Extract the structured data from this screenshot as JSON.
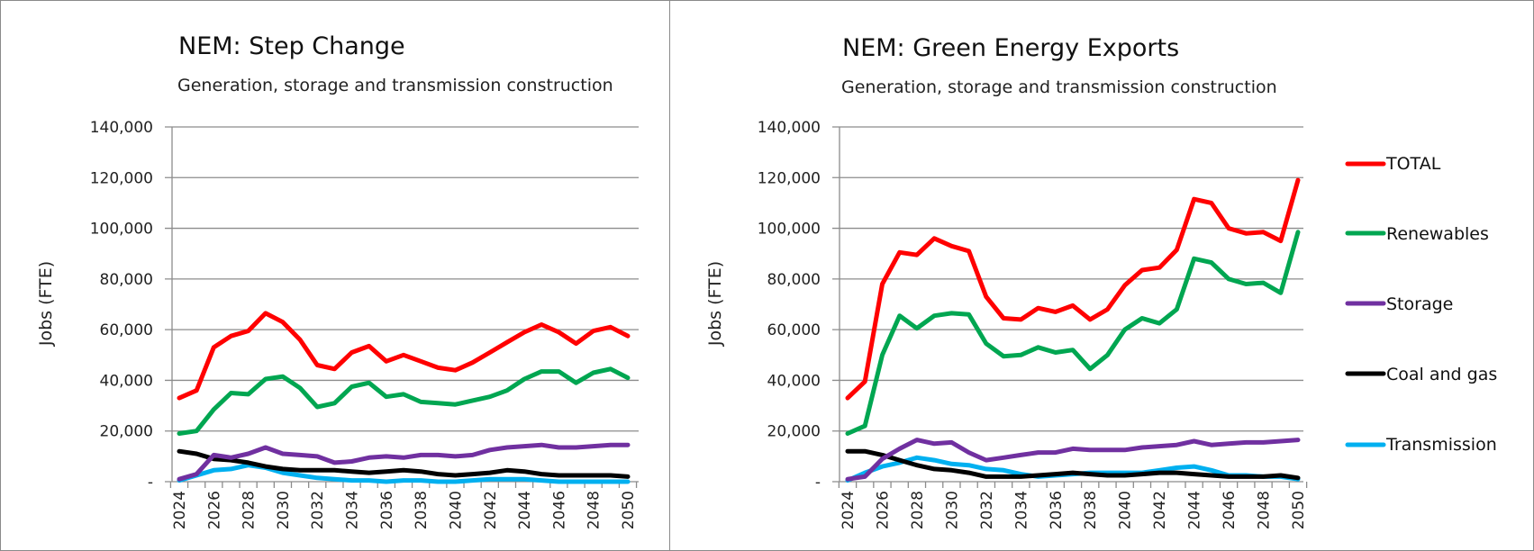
{
  "chart_data": [
    {
      "type": "line",
      "title": "NEM: Step Change",
      "subtitle": "Generation, storage and transmission construction",
      "xlabel": "",
      "ylabel": "Jobs (FTE)",
      "ylim": [
        0,
        140000
      ],
      "yticks": [
        0,
        20000,
        40000,
        60000,
        80000,
        100000,
        120000,
        140000
      ],
      "ytick_labels": [
        "-",
        "20,000",
        "40,000",
        "60,000",
        "80,000",
        "100,000",
        "120,000",
        "140,000"
      ],
      "x": [
        2024,
        2025,
        2026,
        2027,
        2028,
        2029,
        2030,
        2031,
        2032,
        2033,
        2034,
        2035,
        2036,
        2037,
        2038,
        2039,
        2040,
        2041,
        2042,
        2043,
        2044,
        2045,
        2046,
        2047,
        2048,
        2049,
        2050
      ],
      "xtick_labels": [
        "2024",
        "2026",
        "2028",
        "2030",
        "2032",
        "2034",
        "2036",
        "2038",
        "2040",
        "2042",
        "2044",
        "2046",
        "2048",
        "2050"
      ],
      "grid": true,
      "legend": null,
      "series": [
        {
          "name": "TOTAL",
          "color": "#ff0000",
          "values": [
            33000,
            36000,
            53000,
            57500,
            59500,
            66500,
            63000,
            56000,
            46000,
            44500,
            51000,
            53500,
            47500,
            50000,
            47500,
            45000,
            44000,
            47000,
            51000,
            55000,
            59000,
            62000,
            59000,
            54500,
            59500,
            61000,
            57500
          ]
        },
        {
          "name": "Renewables",
          "color": "#00a651",
          "values": [
            19000,
            20000,
            28500,
            35000,
            34500,
            40500,
            41500,
            37000,
            29500,
            31000,
            37500,
            39000,
            33500,
            34500,
            31500,
            31000,
            30500,
            32000,
            33500,
            36000,
            40500,
            43500,
            43500,
            39000,
            43000,
            44500,
            41000
          ]
        },
        {
          "name": "Storage",
          "color": "#7030a0",
          "values": [
            1000,
            3000,
            10500,
            9500,
            11000,
            13500,
            11000,
            10500,
            10000,
            7500,
            8000,
            9500,
            10000,
            9500,
            10500,
            10500,
            10000,
            10500,
            12500,
            13500,
            14000,
            14500,
            13500,
            13500,
            14000,
            14500,
            14500
          ]
        },
        {
          "name": "Coal and gas",
          "color": "#000000",
          "values": [
            12000,
            11000,
            9000,
            8500,
            7500,
            6000,
            5000,
            4500,
            4500,
            4500,
            4000,
            3500,
            4000,
            4500,
            4000,
            3000,
            2500,
            3000,
            3500,
            4500,
            4000,
            3000,
            2500,
            2500,
            2500,
            2500,
            2000
          ]
        },
        {
          "name": "Transmission",
          "color": "#00b0f0",
          "values": [
            500,
            2500,
            4500,
            5000,
            6500,
            5500,
            3500,
            2500,
            1500,
            1000,
            500,
            500,
            0,
            500,
            500,
            0,
            0,
            500,
            1000,
            1000,
            1000,
            500,
            0,
            0,
            0,
            0,
            0
          ]
        }
      ]
    },
    {
      "type": "line",
      "title": "NEM: Green Energy Exports",
      "subtitle": "Generation, storage and transmission construction",
      "xlabel": "",
      "ylabel": "Jobs (FTE)",
      "ylim": [
        0,
        140000
      ],
      "yticks": [
        0,
        20000,
        40000,
        60000,
        80000,
        100000,
        120000,
        140000
      ],
      "ytick_labels": [
        "-",
        "20,000",
        "40,000",
        "60,000",
        "80,000",
        "100,000",
        "120,000",
        "140,000"
      ],
      "x": [
        2024,
        2025,
        2026,
        2027,
        2028,
        2029,
        2030,
        2031,
        2032,
        2033,
        2034,
        2035,
        2036,
        2037,
        2038,
        2039,
        2040,
        2041,
        2042,
        2043,
        2044,
        2045,
        2046,
        2047,
        2048,
        2049,
        2050
      ],
      "xtick_labels": [
        "2024",
        "2026",
        "2028",
        "2030",
        "2032",
        "2034",
        "2036",
        "2038",
        "2040",
        "2042",
        "2044",
        "2046",
        "2048",
        "2050"
      ],
      "grid": true,
      "legend": "right",
      "series": [
        {
          "name": "TOTAL",
          "color": "#ff0000",
          "values": [
            33000,
            39500,
            78000,
            90500,
            89500,
            96000,
            93000,
            91000,
            73000,
            64500,
            64000,
            68500,
            67000,
            69500,
            64000,
            68000,
            77500,
            83500,
            84500,
            91500,
            111500,
            110000,
            100000,
            98000,
            98500,
            95000,
            119000
          ]
        },
        {
          "name": "Renewables",
          "color": "#00a651",
          "values": [
            19000,
            22000,
            50000,
            65500,
            60500,
            65500,
            66500,
            66000,
            54500,
            49500,
            50000,
            53000,
            51000,
            52000,
            44500,
            50000,
            60000,
            64500,
            62500,
            68000,
            88000,
            86500,
            80000,
            78000,
            78500,
            74500,
            98500
          ]
        },
        {
          "name": "Storage",
          "color": "#7030a0",
          "values": [
            1000,
            2000,
            9000,
            13000,
            16500,
            15000,
            15500,
            11500,
            8500,
            9500,
            10500,
            11500,
            11500,
            13000,
            12500,
            12500,
            12500,
            13500,
            14000,
            14500,
            16000,
            14500,
            15000,
            15500,
            15500,
            16000,
            16500
          ]
        },
        {
          "name": "Coal and gas",
          "color": "#000000",
          "values": [
            12000,
            12000,
            10500,
            8500,
            6500,
            5000,
            4500,
            3500,
            2000,
            2000,
            2000,
            2500,
            3000,
            3500,
            3000,
            2500,
            2500,
            3000,
            3500,
            3500,
            3000,
            2500,
            2000,
            2000,
            2000,
            2500,
            1500
          ]
        },
        {
          "name": "Transmission",
          "color": "#00b0f0",
          "values": [
            500,
            3500,
            6000,
            7500,
            9500,
            8500,
            7000,
            6500,
            5000,
            4500,
            3000,
            2000,
            2500,
            3000,
            3500,
            3500,
            3500,
            3500,
            4500,
            5500,
            6000,
            4500,
            2500,
            2500,
            2000,
            2000,
            1000
          ]
        }
      ]
    }
  ],
  "legend": {
    "items": [
      {
        "label": "TOTAL",
        "color": "#ff0000"
      },
      {
        "label": "Renewables",
        "color": "#00a651"
      },
      {
        "label": "Storage",
        "color": "#7030a0"
      },
      {
        "label": "Coal and gas",
        "color": "#000000"
      },
      {
        "label": "Transmission",
        "color": "#00b0f0"
      }
    ]
  }
}
